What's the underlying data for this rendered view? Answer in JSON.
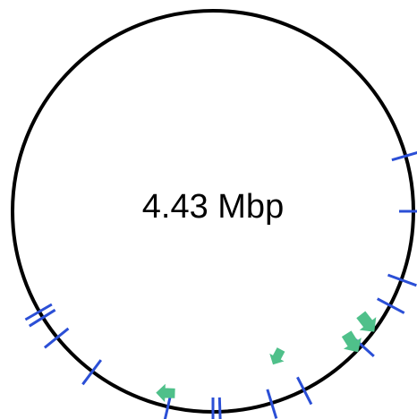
{
  "map": {
    "genome_size_label": "4.43 Mbp",
    "colors": {
      "backbone": "#000000",
      "tick": "#2b4fd6",
      "feature": "#4fc08a"
    },
    "ticks": [
      {
        "id": "tick-1"
      },
      {
        "id": "tick-2"
      },
      {
        "id": "tick-3"
      },
      {
        "id": "tick-4"
      },
      {
        "id": "tick-5"
      },
      {
        "id": "tick-6"
      },
      {
        "id": "tick-7"
      },
      {
        "id": "tick-8"
      },
      {
        "id": "tick-9"
      },
      {
        "id": "tick-10"
      },
      {
        "id": "tick-11"
      },
      {
        "id": "tick-12"
      },
      {
        "id": "tick-13"
      },
      {
        "id": "tick-14"
      }
    ],
    "features": [
      {
        "id": "feature-1",
        "icon": "arrow-feature-icon"
      },
      {
        "id": "feature-2",
        "icon": "arrow-feature-icon"
      },
      {
        "id": "feature-3",
        "icon": "arrow-feature-icon"
      },
      {
        "id": "feature-4",
        "icon": "arrow-feature-icon"
      }
    ]
  }
}
